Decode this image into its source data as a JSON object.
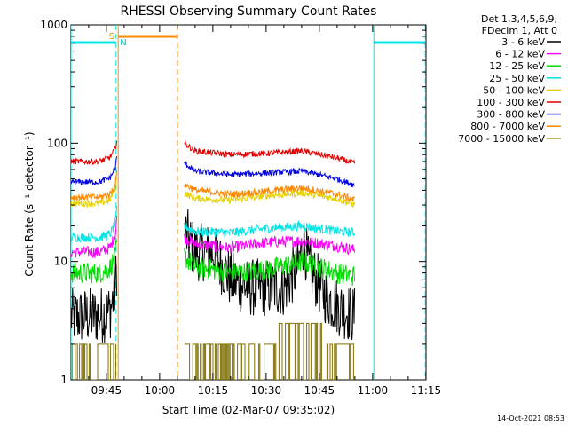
{
  "chart_data": {
    "type": "line",
    "title": "RHESSI Observing Summary Count Rates",
    "xlabel": "Start Time (02-Mar-07 09:35:02)",
    "ylabel": "Count Rate (s⁻¹ detector⁻¹)",
    "y_scale": "log",
    "ylim": [
      1,
      1000
    ],
    "xlim_minutes_after_start": [
      0,
      100
    ],
    "x_ticks": [
      "09:45",
      "10:00",
      "10:15",
      "10:30",
      "10:45",
      "11:00",
      "11:15"
    ],
    "y_ticks": [
      "1",
      "10",
      "100",
      "1000"
    ],
    "legend": {
      "placement": "right",
      "header": [
        "Det 1,3,4,5,6,9,",
        "FDecim 1, Att 0"
      ],
      "entries": [
        {
          "label": "3 - 6 keV",
          "color": "#000000"
        },
        {
          "label": "6 - 12 keV",
          "color": "#ff00ff"
        },
        {
          "label": "12 - 25 keV",
          "color": "#00dd00"
        },
        {
          "label": "25 - 50 keV",
          "color": "#00e5e5"
        },
        {
          "label": "50 - 100 keV",
          "color": "#e5d000"
        },
        {
          "label": "100 - 300 keV",
          "color": "#e00000"
        },
        {
          "label": "300 - 800 keV",
          "color": "#0000e0"
        },
        {
          "label": "800 - 7000 keV",
          "color": "#ff8800"
        },
        {
          "label": "7000 - 15000 keV",
          "color": "#7f7000"
        }
      ]
    },
    "markers": {
      "saa_label": "S",
      "night_label": "N",
      "night_intervals": [
        [
          0,
          12.7
        ],
        [
          85.3,
          99.8
        ]
      ],
      "saa_interval": [
        13.3,
        30.0
      ]
    },
    "gap": [
      13.3,
      31.8
    ],
    "series": [
      {
        "name": "3 - 6 keV",
        "color": "#000000",
        "noise": 0.25,
        "points": [
          [
            0,
            3.4
          ],
          [
            8,
            3.5
          ],
          [
            11,
            3.8
          ],
          [
            12.3,
            5.5
          ],
          [
            12.9,
            9
          ],
          [
            31.9,
            18
          ],
          [
            35,
            12
          ],
          [
            40,
            12
          ],
          [
            45,
            7
          ],
          [
            50,
            6
          ],
          [
            55,
            6
          ],
          [
            60,
            6
          ],
          [
            64,
            9
          ],
          [
            65.5,
            15
          ],
          [
            67,
            9
          ],
          [
            72,
            5
          ],
          [
            76,
            4
          ],
          [
            80,
            3.5
          ]
        ]
      },
      {
        "name": "6 - 12 keV",
        "color": "#ff00ff",
        "noise": 0.05,
        "points": [
          [
            0,
            12
          ],
          [
            8,
            12
          ],
          [
            11,
            13
          ],
          [
            12.5,
            17
          ],
          [
            12.9,
            24
          ],
          [
            31.9,
            16
          ],
          [
            35,
            14
          ],
          [
            45,
            13
          ],
          [
            55,
            14.5
          ],
          [
            65,
            15
          ],
          [
            75,
            13.5
          ],
          [
            80,
            12.5
          ]
        ]
      },
      {
        "name": "12 - 25 keV",
        "color": "#00dd00",
        "noise": 0.09,
        "points": [
          [
            0,
            8
          ],
          [
            8,
            8
          ],
          [
            11,
            8.8
          ],
          [
            12.5,
            11
          ],
          [
            12.9,
            14
          ],
          [
            31.9,
            11
          ],
          [
            35,
            9
          ],
          [
            40,
            8.5
          ],
          [
            45,
            8
          ],
          [
            55,
            8.5
          ],
          [
            65,
            10
          ],
          [
            70,
            9
          ],
          [
            75,
            8
          ],
          [
            80,
            7.5
          ]
        ]
      },
      {
        "name": "25 - 50 keV",
        "color": "#00e5e5",
        "noise": 0.04,
        "points": [
          [
            0,
            16
          ],
          [
            8,
            16
          ],
          [
            11,
            17
          ],
          [
            12.5,
            21
          ],
          [
            12.9,
            27
          ],
          [
            31.9,
            20
          ],
          [
            35,
            18
          ],
          [
            45,
            17.5
          ],
          [
            55,
            19
          ],
          [
            65,
            20
          ],
          [
            75,
            18
          ],
          [
            80,
            17.5
          ]
        ]
      },
      {
        "name": "50 - 100 keV",
        "color": "#e5d000",
        "noise": 0.03,
        "points": [
          [
            0,
            31
          ],
          [
            8,
            31
          ],
          [
            11,
            33
          ],
          [
            12.5,
            42
          ],
          [
            12.9,
            58
          ],
          [
            31.9,
            38
          ],
          [
            35,
            34
          ],
          [
            45,
            33
          ],
          [
            55,
            36
          ],
          [
            65,
            38
          ],
          [
            75,
            34
          ],
          [
            80,
            30
          ]
        ]
      },
      {
        "name": "100 - 300 keV",
        "color": "#e00000",
        "noise": 0.025,
        "points": [
          [
            0,
            70
          ],
          [
            8,
            70
          ],
          [
            11,
            76
          ],
          [
            12.5,
            90
          ],
          [
            12.9,
            108
          ],
          [
            31.9,
            100
          ],
          [
            35,
            86
          ],
          [
            45,
            80
          ],
          [
            55,
            82
          ],
          [
            65,
            86
          ],
          [
            75,
            75
          ],
          [
            80,
            67
          ]
        ]
      },
      {
        "name": "300 - 800 keV",
        "color": "#0000e0",
        "noise": 0.025,
        "points": [
          [
            0,
            47
          ],
          [
            8,
            47
          ],
          [
            11,
            51
          ],
          [
            12.5,
            62
          ],
          [
            12.9,
            76
          ],
          [
            31.9,
            68
          ],
          [
            35,
            58
          ],
          [
            45,
            54
          ],
          [
            55,
            56
          ],
          [
            65,
            58
          ],
          [
            75,
            50
          ],
          [
            80,
            44
          ]
        ]
      },
      {
        "name": "800 - 7000 keV",
        "color": "#ff8800",
        "noise": 0.03,
        "points": [
          [
            0,
            35
          ],
          [
            8,
            35
          ],
          [
            11,
            37
          ],
          [
            12.5,
            45
          ],
          [
            12.9,
            56
          ],
          [
            31.9,
            45
          ],
          [
            35,
            40
          ],
          [
            45,
            37
          ],
          [
            55,
            39
          ],
          [
            65,
            42
          ],
          [
            75,
            37
          ],
          [
            80,
            33
          ]
        ]
      },
      {
        "name": "7000 - 15000 keV",
        "color": "#7f7000",
        "noise": 0,
        "points": [
          [
            0,
            2
          ],
          [
            12.9,
            2
          ],
          [
            31.9,
            2
          ],
          [
            55,
            2
          ],
          [
            60,
            2.8
          ],
          [
            65,
            3
          ],
          [
            80,
            2
          ]
        ]
      }
    ]
  },
  "footer": {
    "timestamp": "14-Oct-2021 08:53"
  }
}
